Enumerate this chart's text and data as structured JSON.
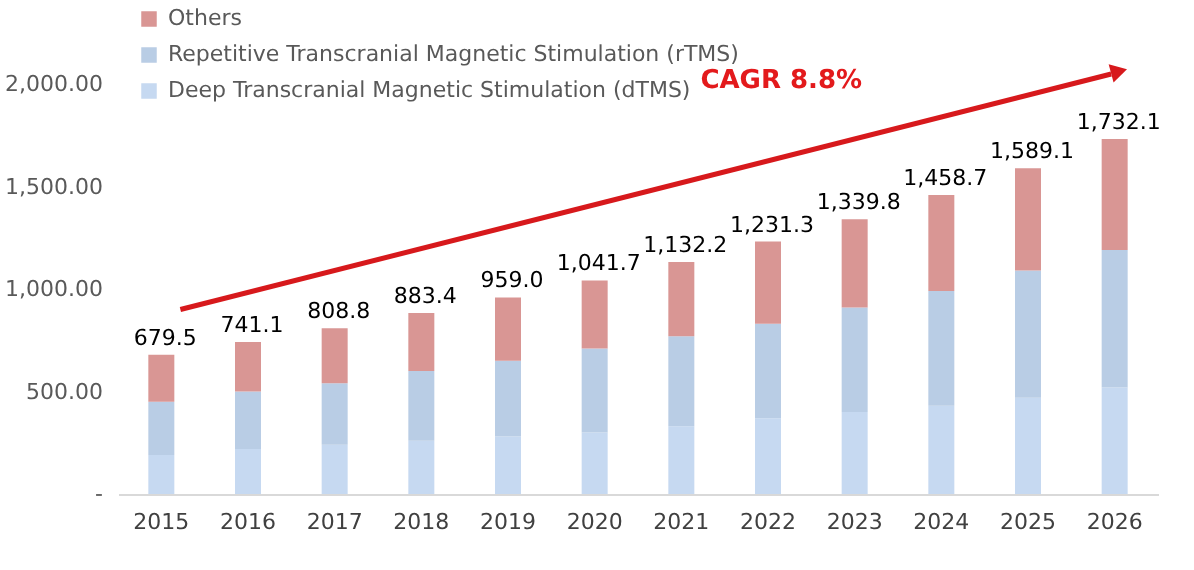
{
  "chart_data": {
    "type": "bar",
    "stacked": true,
    "categories": [
      "2015",
      "2016",
      "2017",
      "2018",
      "2019",
      "2020",
      "2021",
      "2022",
      "2023",
      "2024",
      "2025",
      "2026"
    ],
    "series": [
      {
        "name": "Deep Transcranial Magnetic Stimulation (dTMS)",
        "color": "#c6d9f1",
        "values": [
          190,
          220,
          240,
          260,
          280,
          300,
          330,
          370,
          400,
          430,
          470,
          520
        ]
      },
      {
        "name": "Repetitive Transcranial Magnetic Stimulation (rTMS)",
        "color": "#b9cde5",
        "values": [
          260,
          280,
          300,
          340,
          370,
          410,
          440,
          460,
          510,
          560,
          620,
          670
        ]
      },
      {
        "name": "Others",
        "color": "#d99694",
        "values": [
          229.5,
          241.1,
          268.8,
          283.4,
          309.0,
          331.7,
          362.2,
          401.3,
          429.8,
          468.7,
          499.1,
          542.1
        ]
      }
    ],
    "totals": [
      "679.5",
      "741.1",
      "808.8",
      "883.4",
      "959.0",
      "1,041.7",
      "1,132.2",
      "1,231.3",
      "1,339.8",
      "1,458.7",
      "1,589.1",
      "1,732.1"
    ],
    "ylim": [
      0,
      2000
    ],
    "yticks": [
      {
        "value": 0,
        "label": "-"
      },
      {
        "value": 500,
        "label": "500.00"
      },
      {
        "value": 1000,
        "label": "1,000.00"
      },
      {
        "value": 1500,
        "label": "1,500.00"
      },
      {
        "value": 2000,
        "label": "2,000.00"
      }
    ],
    "annotations": [
      "CAGR 8.8%"
    ],
    "legend": "top left",
    "grid": false
  }
}
